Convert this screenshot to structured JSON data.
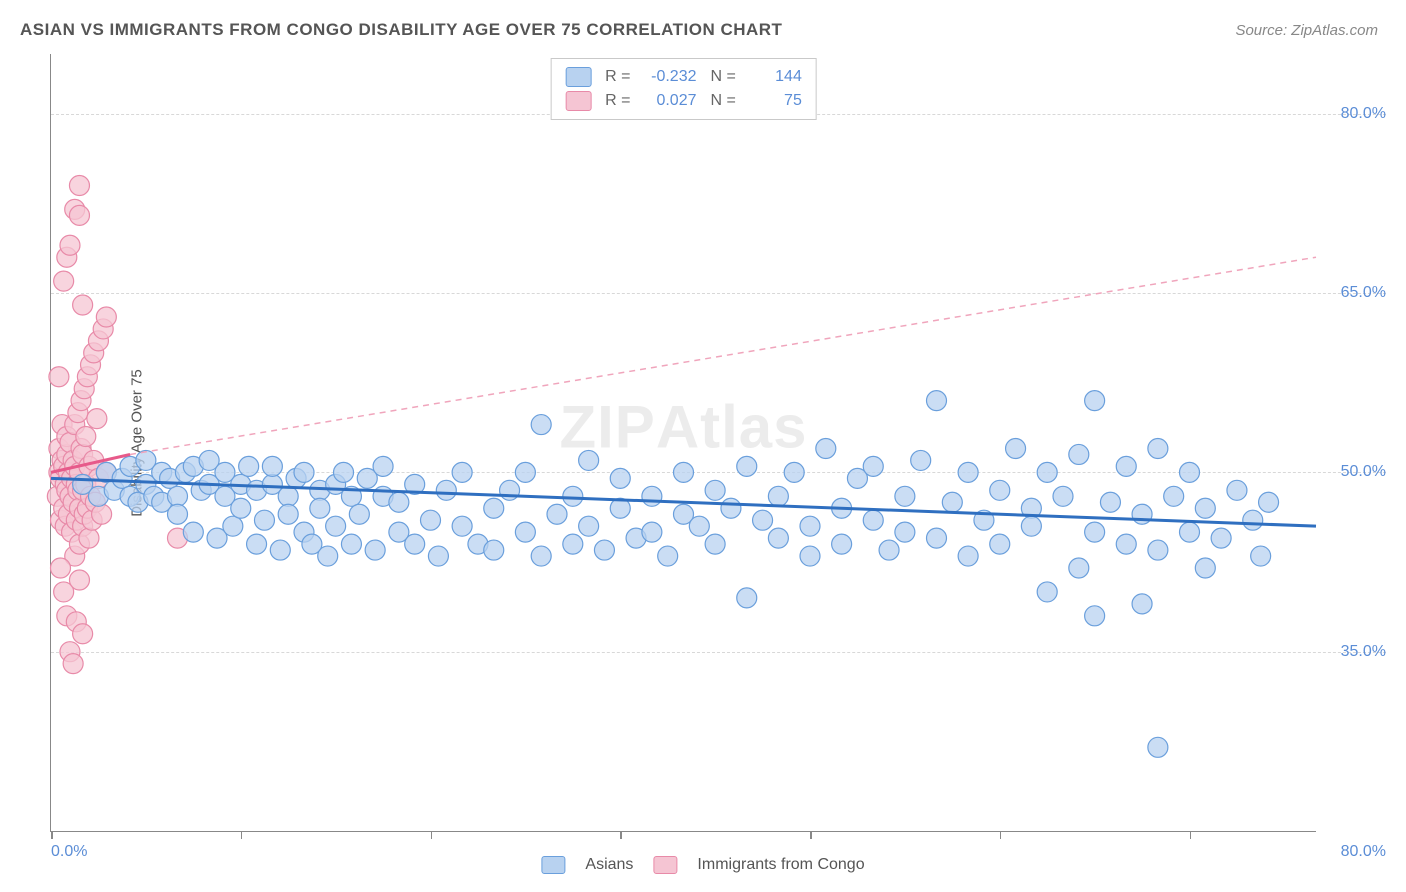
{
  "title": "ASIAN VS IMMIGRANTS FROM CONGO DISABILITY AGE OVER 75 CORRELATION CHART",
  "source": "Source: ZipAtlas.com",
  "ylabel": "Disability Age Over 75",
  "watermark": {
    "zip": "ZIP",
    "atlas": "Atlas"
  },
  "chart": {
    "type": "scatter-correlation",
    "background_color": "#ffffff",
    "axis_color": "#888888",
    "grid_color": "#d8d8d8",
    "xlim": [
      0,
      80
    ],
    "ylim": [
      20,
      85
    ],
    "xticks": [
      0,
      12,
      24,
      36,
      48,
      60,
      72
    ],
    "xaxis_label_min": "0.0%",
    "xaxis_label_max": "80.0%",
    "ygrid": [
      {
        "value": 35,
        "label": "35.0%"
      },
      {
        "value": 50,
        "label": "50.0%"
      },
      {
        "value": 65,
        "label": "65.0%"
      },
      {
        "value": 80,
        "label": "80.0%"
      }
    ],
    "label_color": "#5b8dd6",
    "label_fontsize": 16,
    "title_fontsize": 17,
    "title_color": "#555555",
    "point_radius": 10,
    "point_stroke_width": 1.2,
    "series": [
      {
        "name": "Asians",
        "fill": "#b8d2f0",
        "stroke": "#6a9fdc",
        "fill_opacity": 0.75,
        "r": "-0.232",
        "n": "144",
        "trend": {
          "x1": 0,
          "y1": 49.5,
          "x2": 80,
          "y2": 45.5,
          "stroke": "#2f6fc0",
          "width": 3,
          "dash": "none"
        },
        "points": [
          [
            2,
            49
          ],
          [
            3,
            48
          ],
          [
            3.5,
            50
          ],
          [
            4,
            48.5
          ],
          [
            4.5,
            49.5
          ],
          [
            5,
            48
          ],
          [
            5,
            50.5
          ],
          [
            5.5,
            47.5
          ],
          [
            6,
            49
          ],
          [
            6,
            51
          ],
          [
            6.5,
            48
          ],
          [
            7,
            47.5
          ],
          [
            7,
            50
          ],
          [
            7.5,
            49.5
          ],
          [
            8,
            48
          ],
          [
            8,
            46.5
          ],
          [
            8.5,
            50
          ],
          [
            9,
            45
          ],
          [
            9,
            50.5
          ],
          [
            9.5,
            48.5
          ],
          [
            10,
            49
          ],
          [
            10,
            51
          ],
          [
            10.5,
            44.5
          ],
          [
            11,
            48
          ],
          [
            11,
            50
          ],
          [
            11.5,
            45.5
          ],
          [
            12,
            49
          ],
          [
            12,
            47
          ],
          [
            12.5,
            50.5
          ],
          [
            13,
            44
          ],
          [
            13,
            48.5
          ],
          [
            13.5,
            46
          ],
          [
            14,
            49
          ],
          [
            14,
            50.5
          ],
          [
            14.5,
            43.5
          ],
          [
            15,
            48
          ],
          [
            15,
            46.5
          ],
          [
            15.5,
            49.5
          ],
          [
            16,
            45
          ],
          [
            16,
            50
          ],
          [
            16.5,
            44
          ],
          [
            17,
            48.5
          ],
          [
            17,
            47
          ],
          [
            17.5,
            43
          ],
          [
            18,
            49
          ],
          [
            18,
            45.5
          ],
          [
            18.5,
            50
          ],
          [
            19,
            44
          ],
          [
            19,
            48
          ],
          [
            19.5,
            46.5
          ],
          [
            20,
            49.5
          ],
          [
            20.5,
            43.5
          ],
          [
            21,
            48
          ],
          [
            21,
            50.5
          ],
          [
            22,
            45
          ],
          [
            22,
            47.5
          ],
          [
            23,
            44
          ],
          [
            23,
            49
          ],
          [
            24,
            46
          ],
          [
            24.5,
            43
          ],
          [
            25,
            48.5
          ],
          [
            26,
            45.5
          ],
          [
            26,
            50
          ],
          [
            27,
            44
          ],
          [
            28,
            47
          ],
          [
            28,
            43.5
          ],
          [
            29,
            48.5
          ],
          [
            30,
            45
          ],
          [
            30,
            50
          ],
          [
            31,
            43
          ],
          [
            31,
            54
          ],
          [
            32,
            46.5
          ],
          [
            33,
            48
          ],
          [
            33,
            44
          ],
          [
            34,
            45.5
          ],
          [
            34,
            51
          ],
          [
            35,
            43.5
          ],
          [
            36,
            47
          ],
          [
            36,
            49.5
          ],
          [
            37,
            44.5
          ],
          [
            38,
            48
          ],
          [
            38,
            45
          ],
          [
            39,
            43
          ],
          [
            40,
            46.5
          ],
          [
            40,
            50
          ],
          [
            41,
            45.5
          ],
          [
            42,
            48.5
          ],
          [
            42,
            44
          ],
          [
            43,
            47
          ],
          [
            44,
            39.5
          ],
          [
            44,
            50.5
          ],
          [
            45,
            46
          ],
          [
            46,
            48
          ],
          [
            46,
            44.5
          ],
          [
            47,
            50
          ],
          [
            48,
            45.5
          ],
          [
            48,
            43
          ],
          [
            49,
            52
          ],
          [
            50,
            47
          ],
          [
            50,
            44
          ],
          [
            51,
            49.5
          ],
          [
            52,
            46
          ],
          [
            52,
            50.5
          ],
          [
            53,
            43.5
          ],
          [
            54,
            48
          ],
          [
            54,
            45
          ],
          [
            55,
            51
          ],
          [
            56,
            44.5
          ],
          [
            56,
            56
          ],
          [
            57,
            47.5
          ],
          [
            58,
            50
          ],
          [
            58,
            43
          ],
          [
            59,
            46
          ],
          [
            60,
            48.5
          ],
          [
            60,
            44
          ],
          [
            61,
            52
          ],
          [
            62,
            47
          ],
          [
            62,
            45.5
          ],
          [
            63,
            50
          ],
          [
            63,
            40
          ],
          [
            64,
            48
          ],
          [
            65,
            42
          ],
          [
            65,
            51.5
          ],
          [
            66,
            45
          ],
          [
            66,
            56
          ],
          [
            67,
            47.5
          ],
          [
            68,
            44
          ],
          [
            68,
            50.5
          ],
          [
            69,
            46.5
          ],
          [
            69,
            39
          ],
          [
            70,
            52
          ],
          [
            70,
            43.5
          ],
          [
            71,
            48
          ],
          [
            72,
            45
          ],
          [
            72,
            50
          ],
          [
            73,
            47
          ],
          [
            73,
            42
          ],
          [
            74,
            44.5
          ],
          [
            75,
            48.5
          ],
          [
            76,
            46
          ],
          [
            76.5,
            43
          ],
          [
            77,
            47.5
          ],
          [
            70,
            27
          ],
          [
            66,
            38
          ]
        ]
      },
      {
        "name": "Immigrants from Congo",
        "fill": "#f5c5d3",
        "stroke": "#e88aa8",
        "fill_opacity": 0.75,
        "r": "0.027",
        "n": "75",
        "trend_solid": {
          "x1": 0,
          "y1": 50,
          "x2": 5,
          "y2": 51.5,
          "stroke": "#e75a8a",
          "width": 3
        },
        "trend_dash": {
          "x1": 5,
          "y1": 51.5,
          "x2": 80,
          "y2": 68,
          "stroke": "#f0a5bc",
          "width": 1.5,
          "dash": "6,5"
        },
        "points": [
          [
            0.4,
            48
          ],
          [
            0.5,
            50
          ],
          [
            0.5,
            52
          ],
          [
            0.6,
            46
          ],
          [
            0.6,
            49.5
          ],
          [
            0.7,
            51
          ],
          [
            0.7,
            54
          ],
          [
            0.8,
            47
          ],
          [
            0.8,
            50.5
          ],
          [
            0.9,
            45.5
          ],
          [
            0.9,
            49
          ],
          [
            1,
            48.5
          ],
          [
            1,
            51.5
          ],
          [
            1,
            53
          ],
          [
            1.1,
            46.5
          ],
          [
            1.1,
            50
          ],
          [
            1.2,
            48
          ],
          [
            1.2,
            52.5
          ],
          [
            1.3,
            45
          ],
          [
            1.3,
            49.5
          ],
          [
            1.4,
            47.5
          ],
          [
            1.4,
            51
          ],
          [
            1.5,
            43
          ],
          [
            1.5,
            50.5
          ],
          [
            1.5,
            54
          ],
          [
            1.6,
            46
          ],
          [
            1.6,
            49
          ],
          [
            1.7,
            48.5
          ],
          [
            1.7,
            55
          ],
          [
            1.8,
            44
          ],
          [
            1.8,
            47
          ],
          [
            1.8,
            50
          ],
          [
            1.9,
            52
          ],
          [
            1.9,
            56
          ],
          [
            2,
            45.5
          ],
          [
            2,
            48.5
          ],
          [
            2,
            51.5
          ],
          [
            2.1,
            46.5
          ],
          [
            2.1,
            57
          ],
          [
            2.2,
            49
          ],
          [
            2.2,
            53
          ],
          [
            2.3,
            47
          ],
          [
            2.3,
            58
          ],
          [
            2.4,
            50.5
          ],
          [
            2.4,
            44.5
          ],
          [
            2.5,
            48
          ],
          [
            2.5,
            59
          ],
          [
            2.6,
            46
          ],
          [
            2.7,
            51
          ],
          [
            2.7,
            60
          ],
          [
            2.8,
            47.5
          ],
          [
            2.9,
            54.5
          ],
          [
            3,
            49.5
          ],
          [
            3,
            61
          ],
          [
            3.2,
            46.5
          ],
          [
            3.3,
            62
          ],
          [
            3.5,
            50
          ],
          [
            3.5,
            63
          ],
          [
            0.8,
            66
          ],
          [
            1,
            68
          ],
          [
            1.2,
            69
          ],
          [
            1.5,
            72
          ],
          [
            1.8,
            71.5
          ],
          [
            2,
            64
          ],
          [
            0.6,
            42
          ],
          [
            0.8,
            40
          ],
          [
            1,
            38
          ],
          [
            1.2,
            35
          ],
          [
            1.4,
            34
          ],
          [
            1.6,
            37.5
          ],
          [
            1.8,
            41
          ],
          [
            2,
            36.5
          ],
          [
            0.5,
            58
          ],
          [
            8,
            44.5
          ],
          [
            1.8,
            74
          ]
        ]
      }
    ]
  },
  "legend_bottom": [
    {
      "label": "Asians",
      "fill": "#b8d2f0",
      "stroke": "#6a9fdc"
    },
    {
      "label": "Immigrants from Congo",
      "fill": "#f5c5d3",
      "stroke": "#e88aa8"
    }
  ]
}
